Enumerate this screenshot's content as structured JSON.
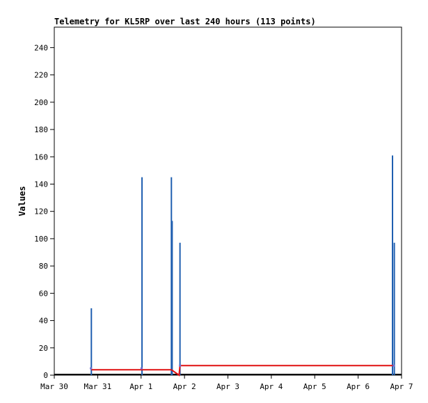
{
  "chart_data": {
    "type": "bar",
    "title": "Telemetry for KL5RP over last 240 hours (113 points)",
    "xlabel": "",
    "ylabel": "Values",
    "ylim": [
      0,
      255
    ],
    "yticks": [
      0,
      20,
      40,
      60,
      80,
      100,
      120,
      140,
      160,
      180,
      200,
      220,
      240
    ],
    "xlim": [
      "2024-03-30T00:00",
      "2024-04-07T00:00"
    ],
    "xticks": [
      {
        "label": "Mar 30",
        "t": "2024-03-30T00:00"
      },
      {
        "label": "Mar 31",
        "t": "2024-03-31T00:00"
      },
      {
        "label": "Apr 1",
        "t": "2024-04-01T00:00"
      },
      {
        "label": "Apr 2",
        "t": "2024-04-02T00:00"
      },
      {
        "label": "Apr 3",
        "t": "2024-04-03T00:00"
      },
      {
        "label": "Apr 4",
        "t": "2024-04-04T00:00"
      },
      {
        "label": "Apr 5",
        "t": "2024-04-05T00:00"
      },
      {
        "label": "Apr 6",
        "t": "2024-04-06T00:00"
      },
      {
        "label": "Apr 7",
        "t": "2024-04-07T00:00"
      }
    ],
    "grid": false,
    "series": [
      {
        "color": "#1f5fb0",
        "kind": "spikes",
        "points": [
          {
            "t": "2024-03-30T20:30",
            "v": 49
          },
          {
            "t": "2024-04-01T00:30",
            "v": 145
          },
          {
            "t": "2024-04-01T16:45",
            "v": 145
          },
          {
            "t": "2024-04-01T17:10",
            "v": 113
          },
          {
            "t": "2024-04-01T21:30",
            "v": 97
          },
          {
            "t": "2024-04-06T19:00",
            "v": 161
          },
          {
            "t": "2024-04-06T20:00",
            "v": 97
          }
        ]
      },
      {
        "color": "#e01010",
        "kind": "line",
        "points": [
          {
            "t": "2024-03-30T20:30",
            "v": 4
          },
          {
            "t": "2024-04-01T16:45",
            "v": 4
          },
          {
            "t": "2024-04-01T21:00",
            "v": 0
          },
          {
            "t": "2024-04-01T21:30",
            "v": 7
          },
          {
            "t": "2024-04-06T20:00",
            "v": 7
          }
        ]
      }
    ],
    "markers": {
      "color": "#7070d0",
      "points": [
        {
          "t": "2024-03-30T20:15",
          "v": 5
        },
        {
          "t": "2024-04-01T00:15",
          "v": 5
        },
        {
          "t": "2024-04-01T21:30",
          "v": 7
        },
        {
          "t": "2024-04-06T19:40",
          "v": 7
        }
      ]
    }
  }
}
